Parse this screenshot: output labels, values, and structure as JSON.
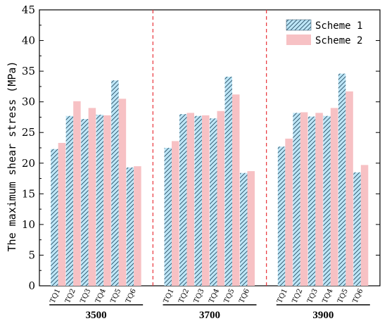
{
  "chart_data": {
    "type": "bar",
    "ylabel": "The maximum shear stress (MPa)",
    "ylim": [
      0,
      45
    ],
    "yticks": [
      "0",
      "5",
      "10",
      "15",
      "20",
      "25",
      "30",
      "35",
      "40",
      "45"
    ],
    "grid": false,
    "legend_position": "top-right",
    "categories": [
      "TQ1",
      "TQ2",
      "TQ3",
      "TQ4",
      "TQ5",
      "TQ6"
    ],
    "groups": [
      {
        "label": "3500",
        "series": [
          {
            "name": "Scheme 1",
            "values": [
              22.3,
              27.7,
              27.2,
              27.9,
              33.5,
              19.3
            ]
          },
          {
            "name": "Scheme 2",
            "values": [
              23.3,
              30.1,
              29.0,
              27.8,
              30.5,
              19.5
            ]
          }
        ]
      },
      {
        "label": "3700",
        "series": [
          {
            "name": "Scheme 1",
            "values": [
              22.5,
              28.0,
              27.7,
              27.3,
              34.1,
              18.4
            ]
          },
          {
            "name": "Scheme 2",
            "values": [
              23.6,
              28.2,
              27.8,
              28.5,
              31.2,
              18.7
            ]
          }
        ]
      },
      {
        "label": "3900",
        "series": [
          {
            "name": "Scheme 1",
            "values": [
              22.7,
              28.2,
              27.6,
              27.7,
              34.6,
              18.5
            ]
          },
          {
            "name": "Scheme 2",
            "values": [
              24.0,
              28.3,
              28.2,
              29.0,
              31.7,
              19.7
            ]
          }
        ]
      }
    ],
    "colors": {
      "scheme1_fill": "#bde6f7",
      "scheme1_hatch": "#2a4f66",
      "scheme2_fill": "#f7c1c4",
      "separator": "#e8333a"
    }
  }
}
